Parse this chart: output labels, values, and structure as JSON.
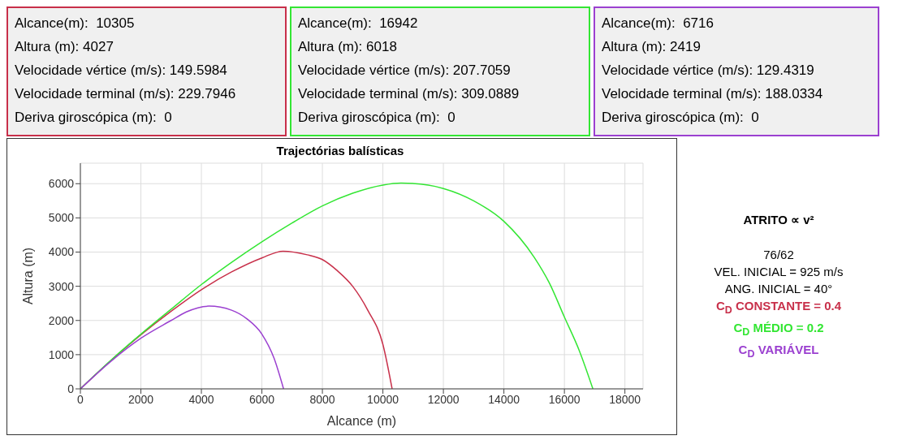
{
  "chart_data": {
    "type": "line",
    "title": "Trajectórias balísticas",
    "xlabel": "Alcance (m)",
    "ylabel": "Altura (m)",
    "xlim": [
      0,
      18600
    ],
    "xticks": [
      0,
      2000,
      4000,
      6000,
      8000,
      10000,
      12000,
      14000,
      16000,
      18000
    ],
    "ylim": [
      0,
      6600
    ],
    "yticks": [
      0,
      1000,
      2000,
      3000,
      4000,
      5000,
      6000
    ],
    "grid": true,
    "marker": "none",
    "line_style": "solid",
    "series": [
      {
        "color": "#c8304a",
        "x": [
          0,
          1000,
          2000,
          3000,
          4000,
          5000,
          6000,
          6700,
          7500,
          8000,
          8500,
          9000,
          9500,
          10000,
          10305
        ],
        "values": [
          0,
          820,
          1580,
          2270,
          2900,
          3420,
          3830,
          4027,
          3920,
          3780,
          3450,
          3000,
          2300,
          1300,
          0
        ]
      },
      {
        "color": "#33e633",
        "x": [
          0,
          1000,
          2000,
          3000,
          4000,
          5000,
          6000,
          7000,
          8000,
          9000,
          10000,
          10600,
          11500,
          12000,
          13000,
          14000,
          15000,
          15500,
          16000,
          16500,
          16942
        ],
        "values": [
          0,
          830,
          1600,
          2330,
          3050,
          3700,
          4300,
          4850,
          5350,
          5720,
          5960,
          6018,
          5960,
          5860,
          5500,
          4900,
          3850,
          3100,
          2100,
          1100,
          0
        ]
      },
      {
        "color": "#9b40d0",
        "x": [
          0,
          1000,
          2000,
          3000,
          3500,
          4250,
          5000,
          5500,
          6000,
          6400,
          6716
        ],
        "values": [
          0,
          800,
          1480,
          2000,
          2250,
          2419,
          2300,
          2050,
          1600,
          900,
          0
        ]
      }
    ],
    "annotations": [
      "Alcance(m):  10305\nAltura (m): 4027\nVelocidade vértice (m/s): 149.5984\nVelocidade terminal (m/s): 229.7946\nDeriva giroscópica (m):  0",
      "Alcance(m):  16942\nAltura (m): 6018\nVelocidade vértice (m/s): 207.7059\nVelocidade terminal (m/s): 309.0889\nDeriva giroscópica (m):  0",
      "Alcance(m):  6716\nAltura (m): 2419\nVelocidade vértice (m/s): 129.4319\nVelocidade terminal (m/s): 188.0334\nDeriva giroscópica (m):  0",
      "ATRITO ∝ v²",
      "76/62\nVEL. INICIAL = 925 m/s\nANG. INICIAL = 40°",
      "C$_{D}$ CONSTANTE = 0.4",
      "C$_{D}$ MÉDIO = 0.2",
      "C$_{D}$ VARIÁVEL"
    ]
  }
}
